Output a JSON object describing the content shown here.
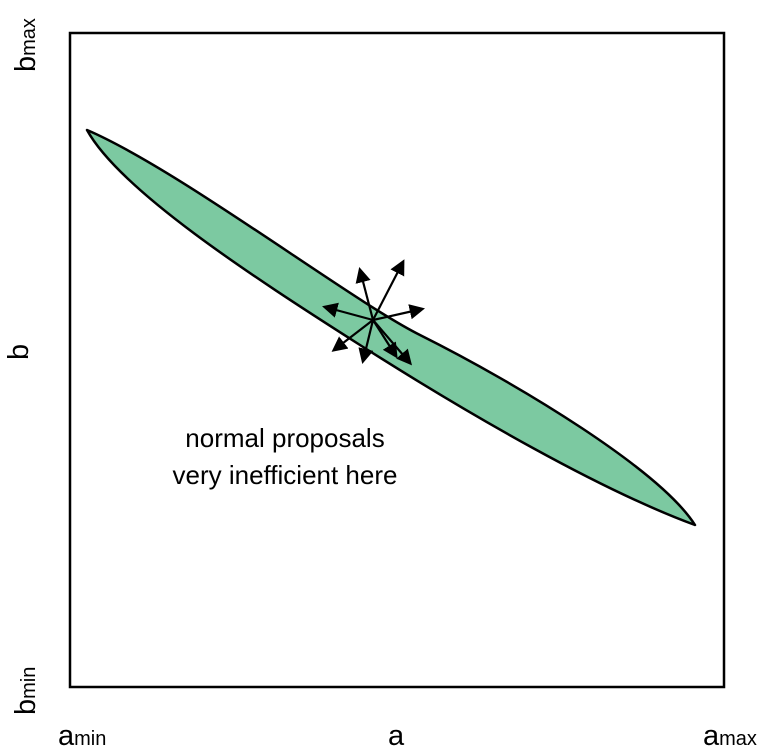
{
  "diagram": {
    "x_axis": {
      "label": "a",
      "min_label": {
        "base": "a",
        "sub": "min"
      },
      "max_label": {
        "base": "a",
        "sub": "max"
      }
    },
    "y_axis": {
      "label": "b",
      "min_label": {
        "base": "b",
        "sub": "min"
      },
      "max_label": {
        "base": "b",
        "sub": "max"
      }
    },
    "annotation": {
      "line1": "normal proposals",
      "line2": "very inefficient here"
    },
    "colors": {
      "ellipse_fill": "#7cc9a1",
      "stroke": "#000000",
      "background": "#ffffff"
    },
    "proposal_arrow_count": 8
  }
}
